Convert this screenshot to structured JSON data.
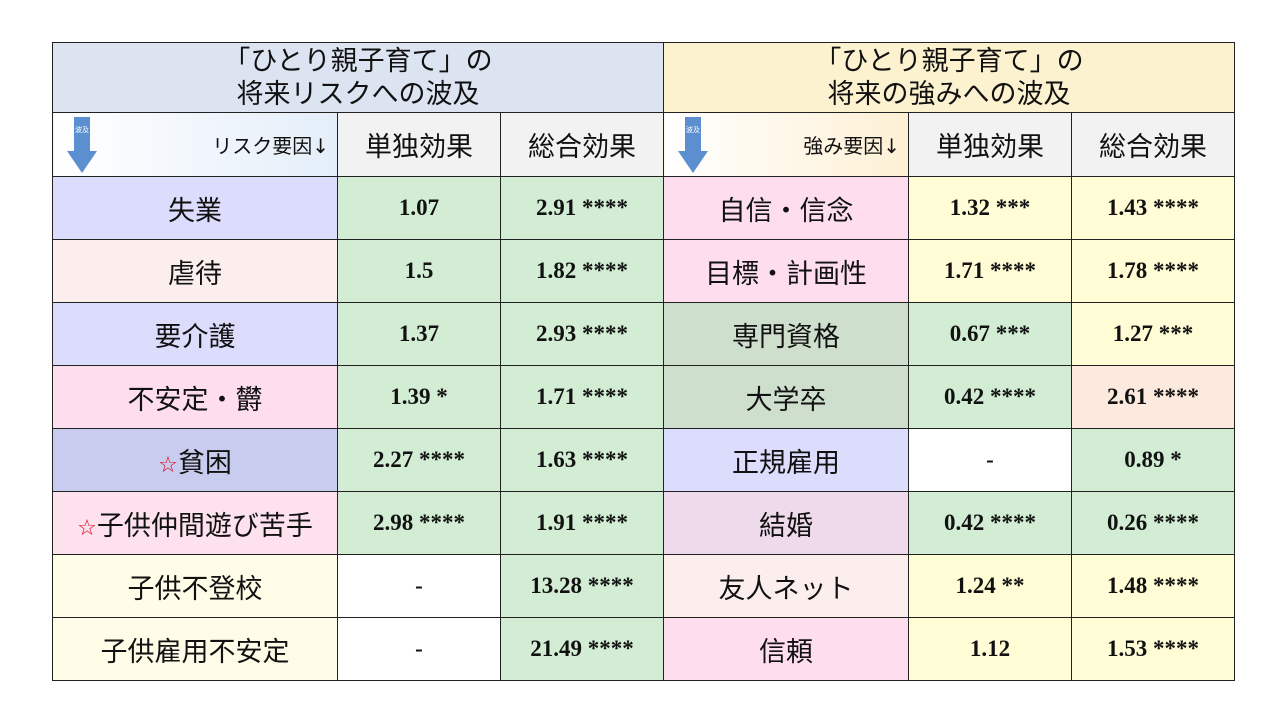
{
  "header": {
    "left_line1": "「ひとり親子育て」の",
    "left_line2": "将来リスクへの波及",
    "right_line1": "「ひとり親子育て」の",
    "right_line2": "将来の強みへの波及"
  },
  "subheader": {
    "left_factor": "リスク要因↓",
    "right_factor": "強み要因↓",
    "single_effect": "単独効果",
    "total_effect": "総合効果",
    "arrow_label": "波及"
  },
  "star_symbol": "☆",
  "rows": [
    {
      "risk": "失業",
      "risk_star": false,
      "risk_single": "1.07",
      "risk_total": "2.91 ****",
      "strength": "自信・信念",
      "strength_single": "1.32 ***",
      "strength_total": "1.43 ****"
    },
    {
      "risk": "虐待",
      "risk_star": false,
      "risk_single": "1.5",
      "risk_total": "1.82 ****",
      "strength": "目標・計画性",
      "strength_single": "1.71 ****",
      "strength_total": "1.78 ****"
    },
    {
      "risk": "要介護",
      "risk_star": false,
      "risk_single": "1.37",
      "risk_total": "2.93 ****",
      "strength": "専門資格",
      "strength_single": "0.67 ***",
      "strength_total": "1.27 ***"
    },
    {
      "risk": "不安定・欝",
      "risk_star": false,
      "risk_single": "1.39 *",
      "risk_total": "1.71 ****",
      "strength": "大学卒",
      "strength_single": "0.42 ****",
      "strength_total": "2.61 ****"
    },
    {
      "risk": "貧困",
      "risk_star": true,
      "risk_single": "2.27 ****",
      "risk_total": "1.63 ****",
      "strength": "正規雇用",
      "strength_single": "-",
      "strength_total": "0.89 *"
    },
    {
      "risk": "子供仲間遊び苦手",
      "risk_star": true,
      "risk_single": "2.98 ****",
      "risk_total": "1.91 ****",
      "strength": "結婚",
      "strength_single": "0.42 ****",
      "strength_total": "0.26 ****"
    },
    {
      "risk": "子供不登校",
      "risk_star": false,
      "risk_single": "-",
      "risk_total": "13.28 ****",
      "strength": "友人ネット",
      "strength_single": "1.24 **",
      "strength_total": "1.48 ****"
    },
    {
      "risk": "子供雇用不安定",
      "risk_star": false,
      "risk_single": "-",
      "risk_total": "21.49 ****",
      "strength": "信頼",
      "strength_single": "1.12",
      "strength_total": "1.53 ****"
    }
  ],
  "colors": {
    "risk_names": [
      "#dcdcfc",
      "#fdeeee",
      "#dcdcfc",
      "#fdddee",
      "#c8cdef",
      "#fde2ee",
      "#fffce8",
      "#fffce8"
    ],
    "risk_single": [
      "#d2edd4",
      "#d2edd4",
      "#d2edd4",
      "#d2edd4",
      "#d2edd4",
      "#d2edd4",
      "#ffffff",
      "#ffffff"
    ],
    "risk_total": [
      "#d2edd4",
      "#d2edd4",
      "#d2edd4",
      "#d2edd4",
      "#d2edd4",
      "#d2edd4",
      "#d2edd4",
      "#d2edd4"
    ],
    "strength_names": [
      "#fdddee",
      "#fdddee",
      "#cfdfcd",
      "#cfdfcd",
      "#dcdcfc",
      "#eedaea",
      "#fdeeee",
      "#fdddee"
    ],
    "strength_single": [
      "#fffcd6",
      "#fffcd6",
      "#d2edd4",
      "#d2edd4",
      "#ffffff",
      "#d2edd4",
      "#fffcd6",
      "#fffcd6"
    ],
    "strength_total": [
      "#fffcd6",
      "#fffcd6",
      "#fffcd6",
      "#fdeade",
      "#d2edd4",
      "#d2edd4",
      "#fffcd6",
      "#fffcd6"
    ]
  }
}
